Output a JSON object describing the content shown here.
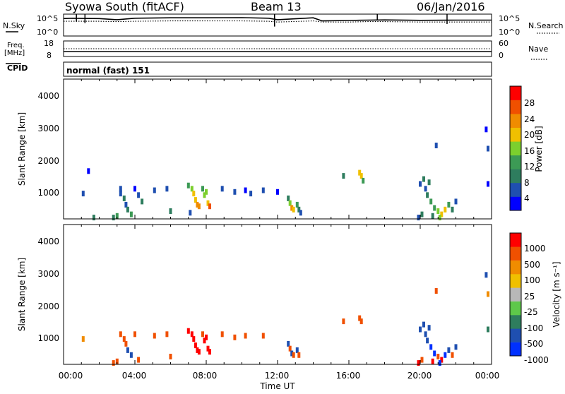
{
  "header": {
    "station": "Syowa South (fitACF)",
    "beam": "Beam 13",
    "date": "06/Jan/2016"
  },
  "nsky_panel": {
    "left_label": "N.Sky",
    "left_top_tick": "10^5",
    "left_bottom_tick": "10^0",
    "right_label": "N.Search",
    "right_top_tick": "10^5",
    "right_bottom_tick": "10^0"
  },
  "freq_panel": {
    "left_label_1": "Freq.",
    "left_label_2": "[MHz]",
    "left_top_tick": "18",
    "left_bottom_tick": "8",
    "right_label": "Nave",
    "right_top_tick": "60",
    "right_bottom_tick": "0"
  },
  "cpid": {
    "label": "CPID",
    "value": "normal (fast) 151"
  },
  "power_panel": {
    "ylabel": "Slant Range [km]",
    "yticks": [
      "4000",
      "3000",
      "2000",
      "1000"
    ],
    "colorbar_label": "Power [dB]",
    "colorbar_ticks": [
      "28",
      "24",
      "20",
      "16",
      "12",
      "8",
      "4"
    ],
    "colors": [
      "#0000ff",
      "#1f4fb0",
      "#2e7d5e",
      "#3c9a55",
      "#7ccf2e",
      "#f0c000",
      "#f08c00",
      "#f05000",
      "#ff0000"
    ]
  },
  "velocity_panel": {
    "ylabel": "Slant Range [km]",
    "yticks": [
      "4000",
      "3000",
      "2000",
      "1000"
    ],
    "colorbar_label": "Velocity [m s⁻¹]",
    "colorbar_ticks": [
      "1000",
      "500",
      "100",
      "25",
      "-25",
      "-100",
      "-500",
      "-1000"
    ],
    "colors": [
      "#0030ff",
      "#1f4fb0",
      "#2e7d5e",
      "#5ec84a",
      "#b8b8b8",
      "#f0c000",
      "#f08c00",
      "#f05000",
      "#ff0000"
    ]
  },
  "xaxis": {
    "ticks": [
      "00:00",
      "04:00",
      "08:00",
      "12:00",
      "16:00",
      "20:00",
      "00:00"
    ],
    "label": "Time UT"
  },
  "chart_data": [
    {
      "type": "line",
      "title": "N.Sky / N.Search",
      "ylim_log10": [
        0,
        5
      ],
      "x_hours": [
        0,
        0.5,
        1,
        2,
        3,
        4,
        6,
        8,
        10,
        11.5,
        12,
        14,
        14.5,
        16,
        17,
        18,
        20,
        22,
        24
      ],
      "series": [
        {
          "name": "N.Sky",
          "values_log10": [
            4.2,
            4.3,
            4.25,
            4.2,
            3.9,
            4.3,
            4.4,
            4.4,
            4.45,
            4.3,
            3.9,
            4.4,
            3.6,
            3.7,
            3.8,
            3.85,
            3.75,
            3.8,
            3.8
          ]
        },
        {
          "name": "N.Search",
          "values_log10": [
            3.5,
            3.5,
            3.5,
            3.5,
            3.4,
            3.5,
            3.6,
            3.6,
            3.6,
            3.5,
            3.3,
            3.6,
            3.3,
            3.3,
            3.4,
            3.4,
            3.3,
            3.3,
            3.3
          ]
        }
      ]
    },
    {
      "type": "line",
      "title": "Freq. / Nave",
      "x_hours": [
        0,
        24
      ],
      "series": [
        {
          "name": "Freq.",
          "values": [
            10.8,
            10.8
          ]
        },
        {
          "name": "Nave",
          "values": [
            18,
            18
          ]
        }
      ]
    },
    {
      "type": "heatmap",
      "title": "Power [dB]",
      "xlim_hours": [
        0,
        24
      ],
      "ylim_km": [
        180,
        4500
      ],
      "points": [
        [
          3.2,
          1100,
          6
        ],
        [
          3.2,
          950,
          8
        ],
        [
          3.4,
          800,
          10
        ],
        [
          3.5,
          600,
          7
        ],
        [
          3.6,
          450,
          9
        ],
        [
          3.8,
          300,
          12
        ],
        [
          4.0,
          1100,
          5
        ],
        [
          4.2,
          900,
          8
        ],
        [
          4.4,
          700,
          11
        ],
        [
          3.0,
          250,
          14
        ],
        [
          2.8,
          200,
          9
        ],
        [
          1.7,
          200,
          10
        ],
        [
          1.1,
          950,
          6
        ],
        [
          1.4,
          1650,
          5
        ],
        [
          5.1,
          1050,
          6
        ],
        [
          5.8,
          1100,
          7
        ],
        [
          6.0,
          400,
          9
        ],
        [
          7.0,
          1200,
          12
        ],
        [
          7.2,
          1100,
          15
        ],
        [
          7.3,
          950,
          18
        ],
        [
          7.4,
          750,
          20
        ],
        [
          7.5,
          600,
          22
        ],
        [
          7.6,
          550,
          21
        ],
        [
          7.8,
          1100,
          14
        ],
        [
          7.9,
          900,
          16
        ],
        [
          8.1,
          650,
          18
        ],
        [
          8.2,
          550,
          24
        ],
        [
          8.0,
          1000,
          17
        ],
        [
          7.1,
          350,
          8
        ],
        [
          8.9,
          1100,
          7
        ],
        [
          9.6,
          1000,
          6
        ],
        [
          10.2,
          1050,
          5
        ],
        [
          10.5,
          950,
          7
        ],
        [
          11.2,
          1050,
          8
        ],
        [
          12.0,
          1000,
          5
        ],
        [
          12.6,
          800,
          10
        ],
        [
          12.7,
          650,
          16
        ],
        [
          12.8,
          500,
          22
        ],
        [
          12.9,
          450,
          20
        ],
        [
          13.1,
          600,
          14
        ],
        [
          13.2,
          450,
          10
        ],
        [
          13.3,
          350,
          8
        ],
        [
          15.7,
          1500,
          9
        ],
        [
          16.6,
          1600,
          18
        ],
        [
          16.7,
          1500,
          20
        ],
        [
          16.8,
          1350,
          12
        ],
        [
          20.0,
          1250,
          7
        ],
        [
          20.2,
          1400,
          9
        ],
        [
          20.5,
          1300,
          11
        ],
        [
          20.3,
          1100,
          8
        ],
        [
          20.4,
          900,
          10
        ],
        [
          20.6,
          700,
          12
        ],
        [
          20.8,
          500,
          14
        ],
        [
          21.0,
          400,
          16
        ],
        [
          21.2,
          300,
          20
        ],
        [
          21.4,
          450,
          18
        ],
        [
          21.6,
          600,
          12
        ],
        [
          21.8,
          450,
          10
        ],
        [
          20.1,
          300,
          9
        ],
        [
          19.9,
          200,
          8
        ],
        [
          20.7,
          250,
          10
        ],
        [
          21.1,
          200,
          15
        ],
        [
          22.0,
          700,
          8
        ],
        [
          20.9,
          2450,
          6
        ],
        [
          23.7,
          2950,
          5
        ],
        [
          23.8,
          2350,
          6
        ],
        [
          23.8,
          1250,
          5
        ]
      ]
    },
    {
      "type": "heatmap",
      "title": "Velocity [m s⁻¹]",
      "xlim_hours": [
        0,
        24
      ],
      "ylim_km": [
        180,
        4500
      ],
      "points": [
        [
          3.2,
          1100,
          -100
        ],
        [
          3.4,
          950,
          -200
        ],
        [
          3.5,
          800,
          -150
        ],
        [
          3.6,
          600,
          50
        ],
        [
          3.8,
          450,
          80
        ],
        [
          4.0,
          1100,
          -120
        ],
        [
          4.2,
          300,
          -60
        ],
        [
          3.0,
          250,
          -80
        ],
        [
          2.8,
          200,
          -150
        ],
        [
          1.1,
          950,
          -40
        ],
        [
          5.1,
          1050,
          -100
        ],
        [
          5.8,
          1100,
          -120
        ],
        [
          6.0,
          400,
          -90
        ],
        [
          7.0,
          1200,
          -300
        ],
        [
          7.2,
          1100,
          -350
        ],
        [
          7.3,
          950,
          -250
        ],
        [
          7.4,
          750,
          -400
        ],
        [
          7.5,
          600,
          -450
        ],
        [
          7.6,
          550,
          -380
        ],
        [
          7.8,
          1100,
          -200
        ],
        [
          7.9,
          900,
          -300
        ],
        [
          8.1,
          650,
          -350
        ],
        [
          8.2,
          550,
          -420
        ],
        [
          8.0,
          1000,
          -260
        ],
        [
          8.9,
          1100,
          -100
        ],
        [
          9.6,
          1000,
          -80
        ],
        [
          10.2,
          1050,
          -60
        ],
        [
          11.2,
          1050,
          -90
        ],
        [
          12.6,
          800,
          120
        ],
        [
          12.7,
          650,
          -150
        ],
        [
          12.8,
          500,
          150
        ],
        [
          12.9,
          450,
          -120
        ],
        [
          13.1,
          600,
          90
        ],
        [
          13.2,
          450,
          -100
        ],
        [
          15.7,
          1500,
          -60
        ],
        [
          16.6,
          1600,
          -200
        ],
        [
          16.7,
          1500,
          -150
        ],
        [
          20.0,
          1250,
          120
        ],
        [
          20.2,
          1400,
          150
        ],
        [
          20.5,
          1300,
          110
        ],
        [
          20.3,
          1100,
          200
        ],
        [
          20.4,
          900,
          180
        ],
        [
          20.6,
          700,
          300
        ],
        [
          20.8,
          500,
          400
        ],
        [
          21.0,
          400,
          -150
        ],
        [
          21.2,
          300,
          -300
        ],
        [
          21.4,
          450,
          250
        ],
        [
          21.6,
          600,
          150
        ],
        [
          21.8,
          450,
          -100
        ],
        [
          20.1,
          300,
          -200
        ],
        [
          19.9,
          200,
          -300
        ],
        [
          20.7,
          250,
          -250
        ],
        [
          21.1,
          200,
          350
        ],
        [
          22.0,
          700,
          100
        ],
        [
          20.9,
          2450,
          -120
        ],
        [
          23.7,
          2950,
          50
        ],
        [
          23.8,
          2350,
          -30
        ],
        [
          23.8,
          1250,
          40
        ]
      ]
    }
  ]
}
